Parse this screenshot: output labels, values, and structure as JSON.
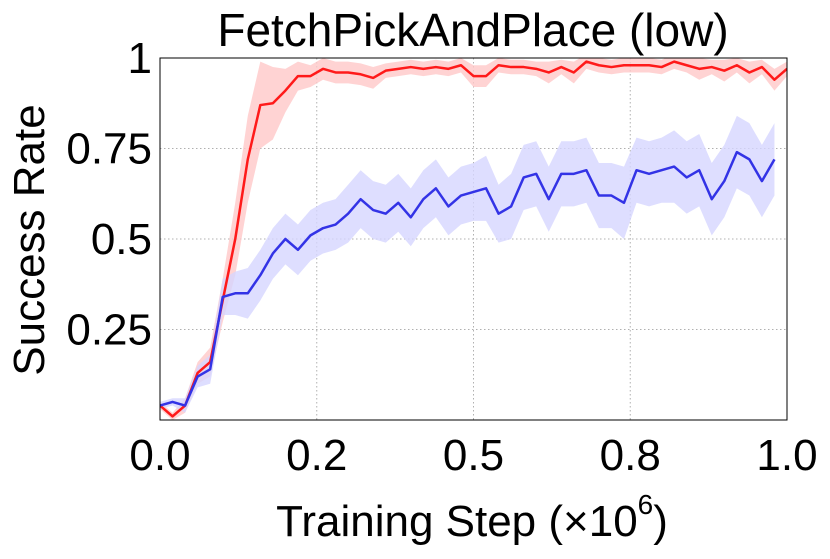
{
  "chart_data": {
    "type": "line",
    "title": "FetchPickAndPlace (low)",
    "ylabel": "Success Rate",
    "xlabel": {
      "text": "Training Step (×10",
      "exponent": "6",
      "suffix": ")"
    },
    "xlim": [
      0,
      1
    ],
    "ylim": [
      0,
      1
    ],
    "xticks": [
      {
        "value": 0,
        "label": "0.0"
      },
      {
        "value": 0.25,
        "label": "0.2"
      },
      {
        "value": 0.5,
        "label": "0.5"
      },
      {
        "value": 0.75,
        "label": "0.8"
      },
      {
        "value": 1,
        "label": "1.0"
      }
    ],
    "yticks": [
      0.25,
      0.5,
      0.75,
      1
    ],
    "grid": true,
    "x": [
      0,
      0.02,
      0.04,
      0.06,
      0.08,
      0.1,
      0.12,
      0.14,
      0.16,
      0.18,
      0.2,
      0.22,
      0.24,
      0.26,
      0.28,
      0.3,
      0.32,
      0.34,
      0.36,
      0.38,
      0.4,
      0.42,
      0.44,
      0.46,
      0.48,
      0.5,
      0.52,
      0.54,
      0.56,
      0.58,
      0.6,
      0.62,
      0.64,
      0.66,
      0.68,
      0.7,
      0.72,
      0.74,
      0.76,
      0.78,
      0.8,
      0.82,
      0.84,
      0.86,
      0.88,
      0.9,
      0.92,
      0.94,
      0.96,
      0.98,
      1.0
    ],
    "series": [
      {
        "color": "#ff1a1a",
        "band_color": "#ffc8c8",
        "values": [
          0.04,
          0.01,
          0.04,
          0.13,
          0.16,
          0.33,
          0.5,
          0.72,
          0.87,
          0.875,
          0.91,
          0.95,
          0.95,
          0.97,
          0.96,
          0.96,
          0.955,
          0.945,
          0.965,
          0.97,
          0.975,
          0.97,
          0.975,
          0.97,
          0.98,
          0.95,
          0.95,
          0.98,
          0.975,
          0.975,
          0.97,
          0.96,
          0.975,
          0.96,
          0.99,
          0.98,
          0.975,
          0.98,
          0.98,
          0.98,
          0.975,
          0.99,
          0.98,
          0.97,
          0.975,
          0.965,
          0.98,
          0.96,
          0.975,
          0.94,
          0.97
        ],
        "error": [
          0.01,
          0.01,
          0.02,
          0.03,
          0.04,
          0.06,
          0.1,
          0.12,
          0.12,
          0.1,
          0.06,
          0.04,
          0.03,
          0.03,
          0.03,
          0.03,
          0.03,
          0.03,
          0.02,
          0.02,
          0.02,
          0.02,
          0.02,
          0.02,
          0.02,
          0.03,
          0.03,
          0.02,
          0.02,
          0.02,
          0.02,
          0.03,
          0.02,
          0.03,
          0.02,
          0.02,
          0.02,
          0.02,
          0.02,
          0.02,
          0.02,
          0.02,
          0.02,
          0.03,
          0.02,
          0.03,
          0.02,
          0.03,
          0.02,
          0.03,
          0.02
        ]
      },
      {
        "color": "#3333e6",
        "band_color": "#d6d6ff",
        "values": [
          0.04,
          0.05,
          0.04,
          0.12,
          0.14,
          0.34,
          0.35,
          0.35,
          0.4,
          0.46,
          0.5,
          0.47,
          0.51,
          0.53,
          0.54,
          0.57,
          0.61,
          0.58,
          0.57,
          0.6,
          0.56,
          0.61,
          0.64,
          0.59,
          0.62,
          0.63,
          0.64,
          0.57,
          0.59,
          0.67,
          0.68,
          0.61,
          0.68,
          0.68,
          0.69,
          0.62,
          0.62,
          0.6,
          0.69,
          0.68,
          0.69,
          0.7,
          0.67,
          0.69,
          0.61,
          0.66,
          0.74,
          0.72,
          0.66,
          0.72,
          null
        ],
        "error": [
          0.01,
          0.01,
          0.02,
          0.03,
          0.04,
          0.05,
          0.06,
          0.07,
          0.07,
          0.07,
          0.07,
          0.07,
          0.07,
          0.07,
          0.07,
          0.08,
          0.08,
          0.08,
          0.08,
          0.08,
          0.08,
          0.08,
          0.08,
          0.08,
          0.08,
          0.08,
          0.09,
          0.08,
          0.09,
          0.09,
          0.09,
          0.09,
          0.09,
          0.09,
          0.09,
          0.09,
          0.09,
          0.1,
          0.09,
          0.09,
          0.09,
          0.1,
          0.1,
          0.1,
          0.1,
          0.1,
          0.1,
          0.1,
          0.1,
          0.1,
          null
        ]
      }
    ]
  }
}
